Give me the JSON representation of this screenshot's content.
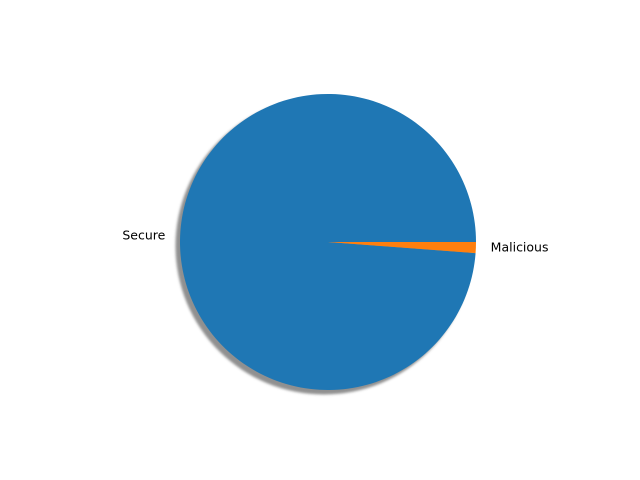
{
  "chart_data": {
    "type": "pie",
    "labels": [
      "Secure",
      "Malicious"
    ],
    "values": [
      98.8,
      1.2
    ],
    "colors": [
      "#1f77b4",
      "#ff7f0e"
    ],
    "shadow": true,
    "start_angle_deg": 0,
    "direction": "counterclockwise"
  }
}
